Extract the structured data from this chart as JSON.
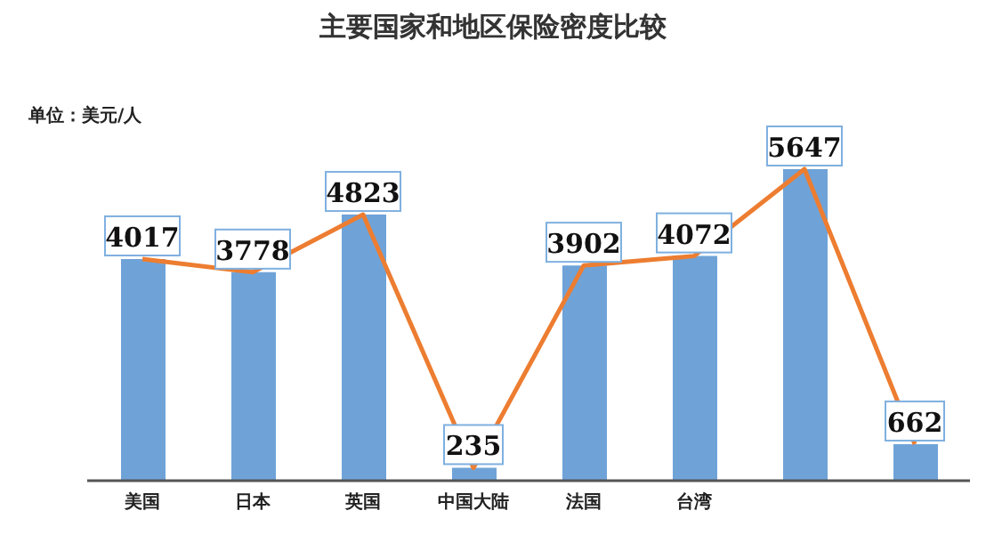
{
  "chart_data": {
    "type": "bar",
    "title": "主要国家和地区保险密度比较",
    "annotations": [
      "单位：美元/人"
    ],
    "categories": [
      "美国",
      "日本",
      "英国",
      "中国大陆",
      "法国",
      "台湾",
      null,
      null
    ],
    "series": [
      {
        "color": "#6fa3d8",
        "values": [
          4017,
          3778,
          4823,
          235,
          3902,
          4072,
          5647,
          662
        ]
      },
      {
        "type": "line",
        "color": "#ed7d31",
        "values": [
          4017,
          3778,
          4823,
          235,
          3902,
          4072,
          5647,
          662
        ],
        "value_labels": [
          "4017",
          "3778",
          "4823",
          "235",
          "3902",
          "4072",
          "5647",
          "662"
        ]
      }
    ],
    "grid": false,
    "legend": false,
    "marker": "none",
    "line_style": "solid"
  }
}
